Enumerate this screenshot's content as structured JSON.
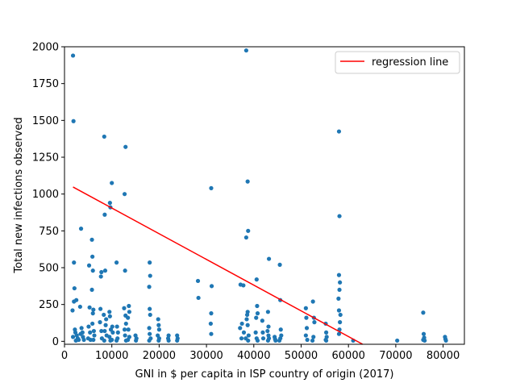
{
  "chart_data": {
    "type": "scatter",
    "title": "",
    "xlabel": "GNI in $ per capita in ISP country of origin (2017)",
    "ylabel": "Total new infections observed",
    "xlim": [
      0,
      84500
    ],
    "ylim": [
      -20,
      2000
    ],
    "x_ticks": [
      0,
      10000,
      20000,
      30000,
      40000,
      50000,
      60000,
      70000,
      80000
    ],
    "x_tick_labels": [
      "0",
      "10000",
      "20000",
      "30000",
      "40000",
      "50000",
      "60000",
      "70000",
      "80000"
    ],
    "y_ticks": [
      0,
      250,
      500,
      750,
      1000,
      1250,
      1500,
      1750,
      2000
    ],
    "y_tick_labels": [
      "0",
      "250",
      "500",
      "750",
      "1000",
      "1250",
      "1500",
      "1750",
      "2000"
    ],
    "grid": false,
    "legend": {
      "position": "top-right",
      "entries": [
        {
          "label": "regression line",
          "color": "#ff0000"
        }
      ]
    },
    "colors": {
      "points": "#1f77b4",
      "regression": "#ff0000"
    },
    "regression_line": {
      "x": [
        1800,
        63000
      ],
      "y": [
        1048,
        -20
      ]
    },
    "points": [
      [
        1800,
        1940
      ],
      [
        1900,
        1495
      ],
      [
        2000,
        535
      ],
      [
        2100,
        360
      ],
      [
        2000,
        270
      ],
      [
        2500,
        280
      ],
      [
        1700,
        210
      ],
      [
        2200,
        80
      ],
      [
        2300,
        60
      ],
      [
        2600,
        40
      ],
      [
        2800,
        20
      ],
      [
        3000,
        10
      ],
      [
        1800,
        30
      ],
      [
        2400,
        5
      ],
      [
        3500,
        765
      ],
      [
        3300,
        235
      ],
      [
        3600,
        90
      ],
      [
        3800,
        60
      ],
      [
        3900,
        30
      ],
      [
        4100,
        10
      ],
      [
        3400,
        50
      ],
      [
        5200,
        515
      ],
      [
        5300,
        230
      ],
      [
        5100,
        100
      ],
      [
        5400,
        60
      ],
      [
        5000,
        20
      ],
      [
        5500,
        10
      ],
      [
        5800,
        690
      ],
      [
        5900,
        575
      ],
      [
        6000,
        480
      ],
      [
        5800,
        350
      ],
      [
        6100,
        215
      ],
      [
        6000,
        190
      ],
      [
        5900,
        120
      ],
      [
        6200,
        70
      ],
      [
        6300,
        40
      ],
      [
        6100,
        10
      ],
      [
        7800,
        470
      ],
      [
        7700,
        440
      ],
      [
        7600,
        220
      ],
      [
        7500,
        130
      ],
      [
        7800,
        70
      ],
      [
        7900,
        20
      ],
      [
        8400,
        1390
      ],
      [
        8500,
        860
      ],
      [
        8600,
        480
      ],
      [
        8300,
        180
      ],
      [
        8800,
        150
      ],
      [
        8700,
        110
      ],
      [
        8500,
        70
      ],
      [
        8900,
        40
      ],
      [
        8400,
        5
      ],
      [
        9600,
        940
      ],
      [
        9700,
        910
      ],
      [
        9500,
        200
      ],
      [
        9600,
        170
      ],
      [
        9800,
        80
      ],
      [
        9500,
        30
      ],
      [
        9700,
        5
      ],
      [
        10000,
        1075
      ],
      [
        10100,
        100
      ],
      [
        10200,
        60
      ],
      [
        10000,
        10
      ],
      [
        11000,
        535
      ],
      [
        11100,
        100
      ],
      [
        11300,
        60
      ],
      [
        11200,
        20
      ],
      [
        11000,
        5
      ],
      [
        12900,
        1320
      ],
      [
        12700,
        1000
      ],
      [
        12800,
        480
      ],
      [
        12600,
        225
      ],
      [
        12900,
        175
      ],
      [
        13000,
        120
      ],
      [
        12700,
        80
      ],
      [
        12800,
        40
      ],
      [
        13000,
        5
      ],
      [
        13600,
        240
      ],
      [
        13700,
        200
      ],
      [
        13400,
        160
      ],
      [
        13500,
        80
      ],
      [
        13700,
        30
      ],
      [
        13400,
        10
      ],
      [
        15000,
        40
      ],
      [
        15200,
        20
      ],
      [
        15100,
        5
      ],
      [
        18000,
        535
      ],
      [
        18100,
        445
      ],
      [
        17900,
        370
      ],
      [
        18000,
        220
      ],
      [
        18100,
        180
      ],
      [
        17900,
        90
      ],
      [
        18000,
        50
      ],
      [
        18200,
        20
      ],
      [
        17900,
        5
      ],
      [
        19800,
        150
      ],
      [
        19900,
        110
      ],
      [
        20000,
        80
      ],
      [
        19700,
        40
      ],
      [
        20000,
        20
      ],
      [
        19900,
        5
      ],
      [
        22000,
        40
      ],
      [
        21900,
        20
      ],
      [
        22000,
        5
      ],
      [
        23800,
        40
      ],
      [
        23900,
        20
      ],
      [
        23800,
        5
      ],
      [
        28200,
        410
      ],
      [
        28300,
        295
      ],
      [
        31000,
        1040
      ],
      [
        31100,
        375
      ],
      [
        31000,
        190
      ],
      [
        30900,
        120
      ],
      [
        31000,
        50
      ],
      [
        37200,
        385
      ],
      [
        37800,
        380
      ],
      [
        37500,
        120
      ],
      [
        37100,
        90
      ],
      [
        37900,
        60
      ],
      [
        37400,
        20
      ],
      [
        38400,
        1975
      ],
      [
        38700,
        1085
      ],
      [
        38800,
        750
      ],
      [
        38400,
        705
      ],
      [
        38700,
        200
      ],
      [
        38600,
        180
      ],
      [
        38500,
        150
      ],
      [
        38700,
        110
      ],
      [
        38900,
        40
      ],
      [
        38300,
        20
      ],
      [
        38800,
        5
      ],
      [
        40600,
        420
      ],
      [
        40700,
        240
      ],
      [
        40800,
        190
      ],
      [
        40500,
        160
      ],
      [
        40400,
        60
      ],
      [
        40600,
        20
      ],
      [
        40800,
        5
      ],
      [
        41800,
        140
      ],
      [
        41900,
        60
      ],
      [
        42000,
        20
      ],
      [
        43200,
        560
      ],
      [
        43000,
        200
      ],
      [
        43100,
        100
      ],
      [
        42900,
        70
      ],
      [
        43100,
        40
      ],
      [
        43200,
        20
      ],
      [
        43000,
        5
      ],
      [
        44400,
        30
      ],
      [
        44500,
        15
      ],
      [
        44600,
        5
      ],
      [
        45500,
        520
      ],
      [
        45600,
        280
      ],
      [
        45700,
        80
      ],
      [
        45800,
        40
      ],
      [
        45600,
        20
      ],
      [
        45400,
        5
      ],
      [
        51000,
        225
      ],
      [
        51100,
        160
      ],
      [
        51200,
        90
      ],
      [
        51000,
        40
      ],
      [
        51300,
        10
      ],
      [
        52500,
        270
      ],
      [
        52700,
        160
      ],
      [
        52800,
        130
      ],
      [
        52600,
        30
      ],
      [
        52400,
        5
      ],
      [
        55200,
        120
      ],
      [
        55300,
        60
      ],
      [
        55400,
        30
      ],
      [
        55200,
        10
      ],
      [
        55300,
        5
      ],
      [
        58000,
        1425
      ],
      [
        58100,
        850
      ],
      [
        58000,
        450
      ],
      [
        58200,
        400
      ],
      [
        58100,
        350
      ],
      [
        57900,
        290
      ],
      [
        58000,
        210
      ],
      [
        58300,
        180
      ],
      [
        58200,
        130
      ],
      [
        58100,
        80
      ],
      [
        58000,
        50
      ],
      [
        61000,
        5
      ],
      [
        70300,
        5
      ],
      [
        75800,
        195
      ],
      [
        75900,
        50
      ],
      [
        76000,
        25
      ],
      [
        75800,
        10
      ],
      [
        76100,
        5
      ],
      [
        80400,
        30
      ],
      [
        80500,
        15
      ],
      [
        80600,
        5
      ]
    ]
  }
}
